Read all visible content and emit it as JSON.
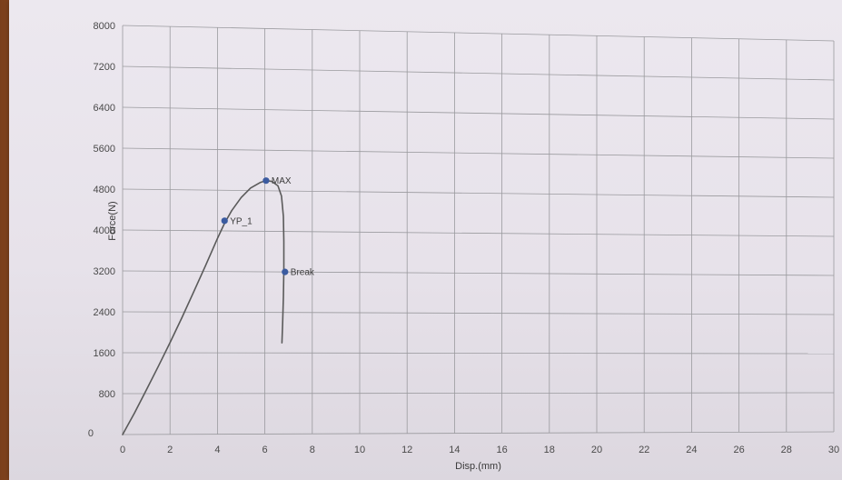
{
  "chart_data": {
    "type": "line",
    "title": "",
    "xlabel": "Disp.(mm)",
    "ylabel": "Force(N)",
    "xlim": [
      0,
      30
    ],
    "ylim": [
      0,
      8000
    ],
    "x_ticks": [
      0,
      2,
      4,
      6,
      8,
      10,
      12,
      14,
      16,
      18,
      20,
      22,
      24,
      26,
      28,
      30
    ],
    "x_tick_labels": [
      "0",
      "2",
      "4",
      "6",
      "8",
      "10",
      "12",
      "14",
      "16",
      "18",
      "20",
      "22",
      "24",
      "26",
      "28",
      "30"
    ],
    "y_ticks": [
      0,
      800,
      1600,
      2400,
      3200,
      4000,
      4800,
      5600,
      6400,
      7200,
      8000
    ],
    "y_tick_labels": [
      "0",
      "800",
      "1600",
      "2400",
      "3200",
      "4000",
      "4800",
      "5600",
      "6400",
      "7200",
      "8000"
    ],
    "grid": true,
    "series": [
      {
        "color": "#5a5a5a",
        "points": [
          [
            0,
            0
          ],
          [
            0.5,
            420
          ],
          [
            1.0,
            870
          ],
          [
            1.5,
            1330
          ],
          [
            2.0,
            1800
          ],
          [
            2.5,
            2290
          ],
          [
            3.0,
            2800
          ],
          [
            3.5,
            3320
          ],
          [
            4.0,
            3850
          ],
          [
            4.3,
            4150
          ],
          [
            4.6,
            4400
          ],
          [
            5.0,
            4660
          ],
          [
            5.4,
            4850
          ],
          [
            5.8,
            4960
          ],
          [
            6.05,
            5000
          ],
          [
            6.3,
            4985
          ],
          [
            6.55,
            4900
          ],
          [
            6.7,
            4700
          ],
          [
            6.78,
            4300
          ],
          [
            6.8,
            3800
          ],
          [
            6.8,
            3250
          ],
          [
            6.78,
            2700
          ],
          [
            6.75,
            2200
          ],
          [
            6.72,
            1800
          ]
        ]
      }
    ],
    "annotations": [
      {
        "label": "YP_1",
        "x": 4.3,
        "y": 4200,
        "color": "#3b5ba0"
      },
      {
        "label": "MAX",
        "x": 6.05,
        "y": 5000,
        "color": "#3b5ba0"
      },
      {
        "label": "Break",
        "x": 6.85,
        "y": 3200,
        "color": "#3b5ba0"
      }
    ]
  }
}
